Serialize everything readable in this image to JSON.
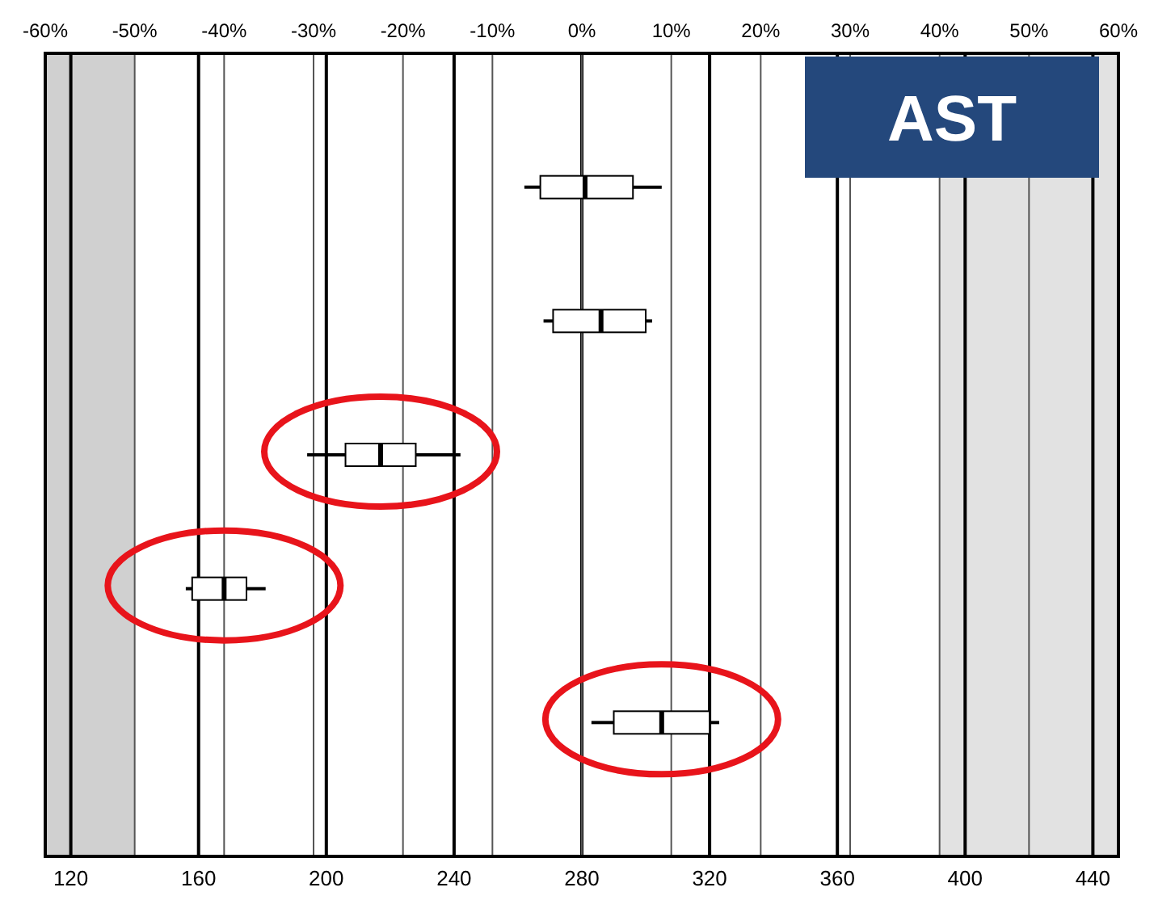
{
  "chart_data": {
    "type": "box",
    "orientation": "horizontal",
    "title": "AST",
    "categories": [
      null,
      null,
      null,
      null,
      null
    ],
    "boxes": [
      {
        "low": 262,
        "q1": 267,
        "median": 281,
        "q3": 296,
        "high": 305
      },
      {
        "low": 268,
        "q1": 271,
        "median": 286,
        "q3": 300,
        "high": 302
      },
      {
        "low": 194,
        "q1": 206,
        "median": 217,
        "q3": 228,
        "high": 242
      },
      {
        "low": 156,
        "q1": 158,
        "median": 168,
        "q3": 175,
        "high": 181
      },
      {
        "low": 283,
        "q1": 290,
        "median": 305,
        "q3": 320,
        "high": 323
      }
    ],
    "xlim": [
      112,
      448
    ],
    "xticks": [
      120,
      160,
      200,
      240,
      280,
      320,
      360,
      400,
      440
    ],
    "x2lim": [
      -60,
      60
    ],
    "x2ticks": [
      {
        "value": -60,
        "label": "-60%"
      },
      {
        "value": -50,
        "label": "-50%"
      },
      {
        "value": -40,
        "label": "-40%"
      },
      {
        "value": -30,
        "label": "-30%"
      },
      {
        "value": -20,
        "label": "-20%"
      },
      {
        "value": -10,
        "label": "-10%"
      },
      {
        "value": 0,
        "label": "0%"
      },
      {
        "value": 10,
        "label": "10%"
      },
      {
        "value": 20,
        "label": "20%"
      },
      {
        "value": 30,
        "label": "30%"
      },
      {
        "value": 40,
        "label": "40%"
      },
      {
        "value": 50,
        "label": "50%"
      },
      {
        "value": 60,
        "label": "60%"
      }
    ],
    "bands": [
      {
        "axis": "x",
        "from": 112,
        "to": 140,
        "color": "#d0d0d0"
      },
      {
        "axis": "x",
        "from": 392,
        "to": 448,
        "color": "#e2e2e2"
      }
    ],
    "grid": "x"
  }
}
